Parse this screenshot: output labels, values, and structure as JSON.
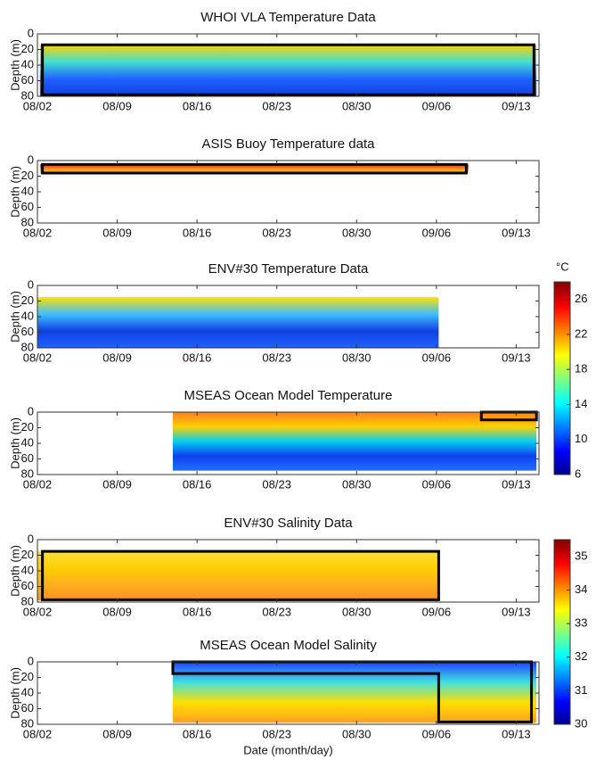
{
  "chart_data": [
    {
      "type": "heatmap",
      "title": "WHOI VLA Temperature Data",
      "y_label": "Depth (m)",
      "ylim": [
        0,
        80
      ],
      "yticks": [
        0,
        20,
        40,
        60,
        80
      ],
      "categories": [
        "08/02",
        "08/09",
        "08/16",
        "08/23",
        "08/30",
        "09/06",
        "09/13"
      ]
    },
    {
      "type": "heatmap",
      "title": "ASIS Buoy Temperature data",
      "y_label": "Depth (m)",
      "ylim": [
        0,
        80
      ],
      "yticks": [
        0,
        20,
        40,
        60,
        80
      ],
      "categories": [
        "08/02",
        "08/09",
        "08/16",
        "08/23",
        "08/30",
        "09/06",
        "09/13"
      ]
    },
    {
      "type": "heatmap",
      "title": "ENV#30 Temperature Data",
      "y_label": "Depth (m)",
      "ylim": [
        0,
        80
      ],
      "yticks": [
        0,
        20,
        40,
        60,
        80
      ],
      "categories": [
        "08/02",
        "08/09",
        "08/16",
        "08/23",
        "08/30",
        "09/06",
        "09/13"
      ]
    },
    {
      "type": "heatmap",
      "title": "MSEAS Ocean Model Temperature",
      "y_label": "Depth (m)",
      "ylim": [
        0,
        80
      ],
      "yticks": [
        0,
        20,
        40,
        60,
        80
      ],
      "categories": [
        "08/02",
        "08/09",
        "08/16",
        "08/23",
        "08/30",
        "09/06",
        "09/13"
      ]
    },
    {
      "type": "heatmap",
      "title": "ENV#30 Salinity Data",
      "y_label": "Depth (m)",
      "ylim": [
        0,
        80
      ],
      "yticks": [
        0,
        20,
        40,
        60,
        80
      ],
      "categories": [
        "08/02",
        "08/09",
        "08/16",
        "08/23",
        "08/30",
        "09/06",
        "09/13"
      ]
    },
    {
      "type": "heatmap",
      "title": "MSEAS Ocean Model Salinity",
      "y_label": "Depth (m)",
      "ylim": [
        0,
        80
      ],
      "yticks": [
        0,
        20,
        40,
        60,
        80
      ],
      "categories": [
        "08/02",
        "08/09",
        "08/16",
        "08/23",
        "08/30",
        "09/06",
        "09/13"
      ],
      "x_label": "Date (month/day)"
    }
  ],
  "colorbars": [
    {
      "label": "°C",
      "lim": [
        6,
        28
      ],
      "ticks": [
        6,
        10,
        14,
        18,
        22,
        26
      ]
    },
    {
      "lim": [
        30,
        35.5
      ],
      "ticks": [
        30,
        31,
        32,
        33,
        34,
        35
      ]
    }
  ]
}
